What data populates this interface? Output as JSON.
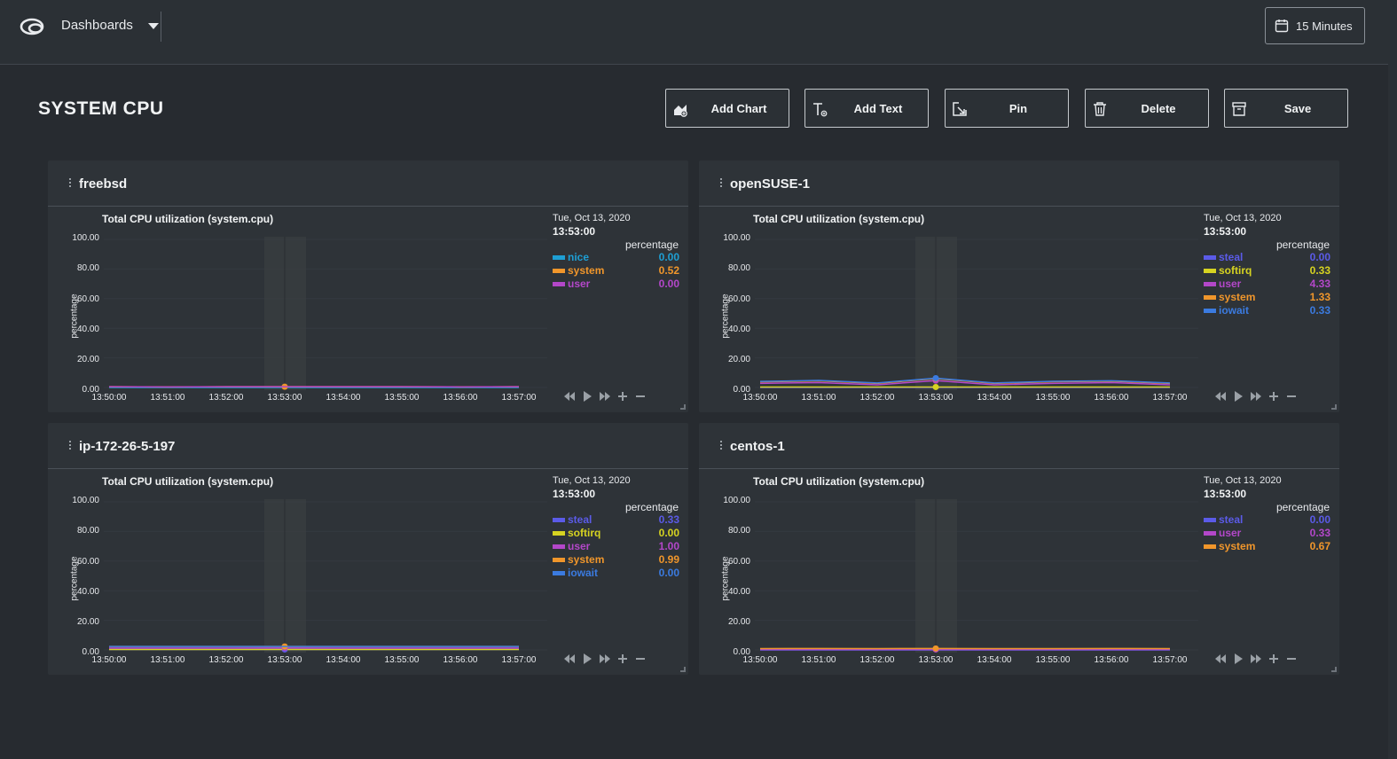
{
  "header": {
    "dashboards_label": "Dashboards",
    "time_range_label": "15 Minutes"
  },
  "page": {
    "title": "SYSTEM CPU"
  },
  "toolbar": {
    "add_chart": "Add Chart",
    "add_text": "Add Text",
    "pin": "Pin",
    "delete": "Delete",
    "save": "Save"
  },
  "colors": {
    "nice": "#1e9fd4",
    "system": "#f0962b",
    "user": "#b347c9",
    "steal": "#5b5be8",
    "softirq": "#d6d321",
    "iowait": "#3b7be0"
  },
  "panels": [
    {
      "title": "freebsd",
      "chart_title": "Total CPU utilization (system.cpu)",
      "date": "Tue, Oct 13, 2020",
      "time": "13:53:00",
      "unit": "percentage",
      "ylabel": "percentage",
      "legend": [
        {
          "name": "nice",
          "value": "0.00",
          "color": "#1e9fd4"
        },
        {
          "name": "system",
          "value": "0.52",
          "color": "#f0962b"
        },
        {
          "name": "user",
          "value": "0.00",
          "color": "#b347c9"
        }
      ]
    },
    {
      "title": "openSUSE-1",
      "chart_title": "Total CPU utilization (system.cpu)",
      "date": "Tue, Oct 13, 2020",
      "time": "13:53:00",
      "unit": "percentage",
      "ylabel": "percentage",
      "legend": [
        {
          "name": "steal",
          "value": "0.00",
          "color": "#5b5be8"
        },
        {
          "name": "softirq",
          "value": "0.33",
          "color": "#d6d321"
        },
        {
          "name": "user",
          "value": "4.33",
          "color": "#b347c9"
        },
        {
          "name": "system",
          "value": "1.33",
          "color": "#f0962b"
        },
        {
          "name": "iowait",
          "value": "0.33",
          "color": "#3b7be0"
        }
      ]
    },
    {
      "title": "ip-172-26-5-197",
      "chart_title": "Total CPU utilization (system.cpu)",
      "date": "Tue, Oct 13, 2020",
      "time": "13:53:00",
      "unit": "percentage",
      "ylabel": "percentage",
      "legend": [
        {
          "name": "steal",
          "value": "0.33",
          "color": "#5b5be8"
        },
        {
          "name": "softirq",
          "value": "0.00",
          "color": "#d6d321"
        },
        {
          "name": "user",
          "value": "1.00",
          "color": "#b347c9"
        },
        {
          "name": "system",
          "value": "0.99",
          "color": "#f0962b"
        },
        {
          "name": "iowait",
          "value": "0.00",
          "color": "#3b7be0"
        }
      ]
    },
    {
      "title": "centos-1",
      "chart_title": "Total CPU utilization (system.cpu)",
      "date": "Tue, Oct 13, 2020",
      "time": "13:53:00",
      "unit": "percentage",
      "ylabel": "percentage",
      "legend": [
        {
          "name": "steal",
          "value": "0.00",
          "color": "#5b5be8"
        },
        {
          "name": "user",
          "value": "0.33",
          "color": "#b347c9"
        },
        {
          "name": "system",
          "value": "0.67",
          "color": "#f0962b"
        }
      ]
    }
  ],
  "chart_data": [
    {
      "type": "area",
      "title": "Total CPU utilization (system.cpu)",
      "ylabel": "percentage",
      "ylim": [
        0,
        100
      ],
      "yticks": [
        "100.00",
        "80.00",
        "60.00",
        "40.00",
        "20.00",
        "0.00"
      ],
      "x": [
        "13:50:00",
        "13:51:00",
        "13:52:00",
        "13:53:00",
        "13:54:00",
        "13:55:00",
        "13:56:00",
        "13:57:00"
      ],
      "highlight": "13:53:00",
      "series": [
        {
          "name": "nice",
          "color": "#1e9fd4",
          "values": [
            0,
            0,
            0,
            0,
            0,
            0,
            0,
            0
          ]
        },
        {
          "name": "system",
          "color": "#f0962b",
          "values": [
            0.5,
            0.4,
            0.5,
            0.52,
            0.5,
            0.5,
            0.4,
            0.5
          ]
        },
        {
          "name": "user",
          "color": "#b347c9",
          "values": [
            0,
            0,
            0,
            0,
            0,
            0,
            0,
            0
          ]
        }
      ]
    },
    {
      "type": "area",
      "title": "Total CPU utilization (system.cpu)",
      "ylabel": "percentage",
      "ylim": [
        0,
        100
      ],
      "yticks": [
        "100.00",
        "80.00",
        "60.00",
        "40.00",
        "20.00",
        "0.00"
      ],
      "x": [
        "13:50:00",
        "13:51:00",
        "13:52:00",
        "13:53:00",
        "13:54:00",
        "13:55:00",
        "13:56:00",
        "13:57:00"
      ],
      "highlight": "13:53:00",
      "series": [
        {
          "name": "steal",
          "color": "#5b5be8",
          "values": [
            0,
            0,
            0,
            0,
            0,
            0,
            0,
            0
          ]
        },
        {
          "name": "softirq",
          "color": "#d6d321",
          "values": [
            0.3,
            0.3,
            0.3,
            0.33,
            0.3,
            0.3,
            0.3,
            0.3
          ]
        },
        {
          "name": "user",
          "color": "#b347c9",
          "values": [
            2.5,
            3,
            1.5,
            4.33,
            1.5,
            2.5,
            3,
            1.5
          ]
        },
        {
          "name": "system",
          "color": "#f0962b",
          "values": [
            1,
            1.2,
            1,
            1.33,
            1,
            1.1,
            1,
            1
          ]
        },
        {
          "name": "iowait",
          "color": "#3b7be0",
          "values": [
            0.3,
            0.3,
            0.3,
            0.33,
            0.3,
            0.3,
            0.3,
            0.3
          ]
        }
      ]
    },
    {
      "type": "area",
      "title": "Total CPU utilization (system.cpu)",
      "ylabel": "percentage",
      "ylim": [
        0,
        100
      ],
      "yticks": [
        "100.00",
        "80.00",
        "60.00",
        "40.00",
        "20.00",
        "0.00"
      ],
      "x": [
        "13:50:00",
        "13:51:00",
        "13:52:00",
        "13:53:00",
        "13:54:00",
        "13:55:00",
        "13:56:00",
        "13:57:00"
      ],
      "highlight": "13:53:00",
      "series": [
        {
          "name": "steal",
          "color": "#5b5be8",
          "values": [
            0.3,
            0.3,
            0.3,
            0.33,
            0.3,
            0.3,
            0.3,
            0.3
          ]
        },
        {
          "name": "softirq",
          "color": "#d6d321",
          "values": [
            0,
            0,
            0,
            0,
            0,
            0,
            0,
            0
          ]
        },
        {
          "name": "user",
          "color": "#b347c9",
          "values": [
            1,
            1,
            1,
            1.0,
            1,
            1,
            1,
            1
          ]
        },
        {
          "name": "system",
          "color": "#f0962b",
          "values": [
            1,
            1,
            1,
            0.99,
            1,
            1,
            1,
            1
          ]
        },
        {
          "name": "iowait",
          "color": "#3b7be0",
          "values": [
            0,
            0,
            0,
            0,
            0,
            0,
            0,
            0
          ]
        }
      ]
    },
    {
      "type": "area",
      "title": "Total CPU utilization (system.cpu)",
      "ylabel": "percentage",
      "ylim": [
        0,
        100
      ],
      "yticks": [
        "100.00",
        "80.00",
        "60.00",
        "40.00",
        "20.00",
        "0.00"
      ],
      "x": [
        "13:50:00",
        "13:51:00",
        "13:52:00",
        "13:53:00",
        "13:54:00",
        "13:55:00",
        "13:56:00",
        "13:57:00"
      ],
      "highlight": "13:53:00",
      "series": [
        {
          "name": "steal",
          "color": "#5b5be8",
          "values": [
            0,
            0,
            0,
            0,
            0,
            0,
            0,
            0
          ]
        },
        {
          "name": "user",
          "color": "#b347c9",
          "values": [
            0.3,
            0.3,
            0.3,
            0.33,
            0.3,
            0.3,
            0.3,
            0.3
          ]
        },
        {
          "name": "system",
          "color": "#f0962b",
          "values": [
            0.6,
            0.7,
            0.6,
            0.67,
            0.6,
            0.6,
            0.7,
            0.6
          ]
        }
      ]
    }
  ]
}
